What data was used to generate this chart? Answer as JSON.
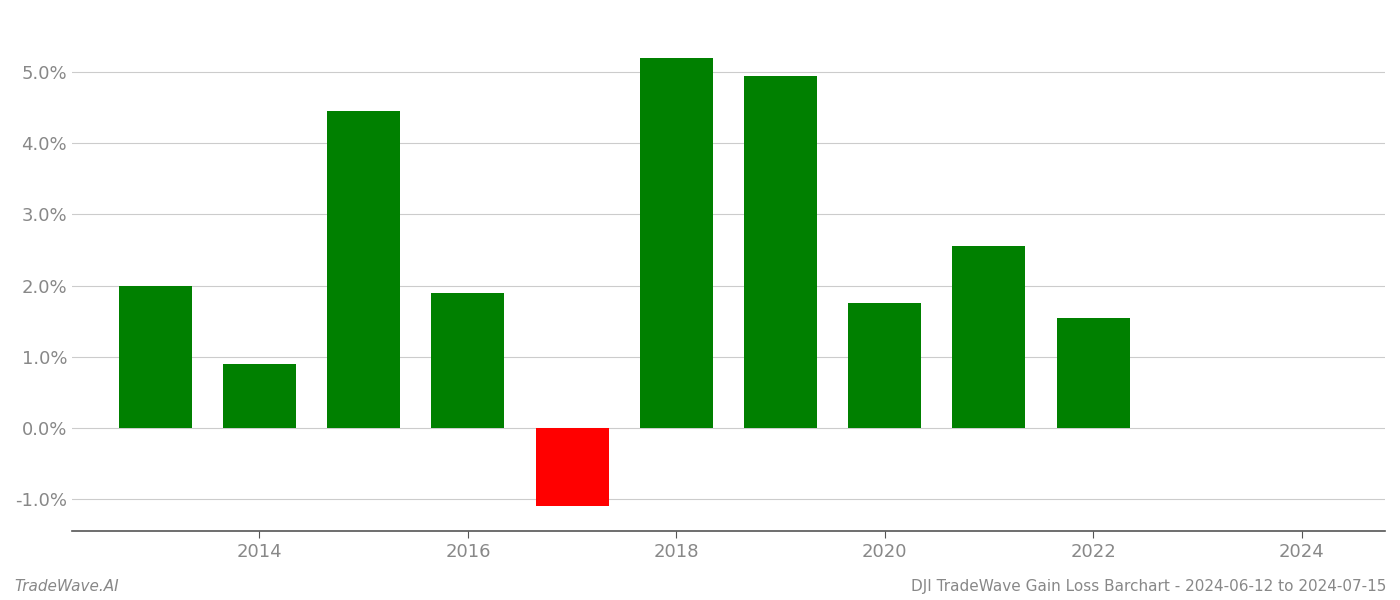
{
  "years": [
    2013,
    2014,
    2015,
    2016,
    2017,
    2018,
    2019,
    2020,
    2021,
    2022,
    2023
  ],
  "values": [
    0.02,
    0.009,
    0.0445,
    0.019,
    -0.011,
    0.052,
    0.0495,
    0.0175,
    0.0255,
    0.0155,
    0.0
  ],
  "colors": [
    "#008000",
    "#008000",
    "#008000",
    "#008000",
    "#ff0000",
    "#008000",
    "#008000",
    "#008000",
    "#008000",
    "#008000",
    "#008000"
  ],
  "bar_width": 0.7,
  "ylim": [
    -0.0145,
    0.058
  ],
  "yticks": [
    -0.01,
    0.0,
    0.01,
    0.02,
    0.03,
    0.04,
    0.05
  ],
  "xtick_positions": [
    2014,
    2016,
    2018,
    2020,
    2022,
    2024
  ],
  "xlim": [
    2012.2,
    2024.8
  ],
  "footer_left": "TradeWave.AI",
  "footer_right": "DJI TradeWave Gain Loss Barchart - 2024-06-12 to 2024-07-15",
  "background_color": "#ffffff",
  "grid_color": "#cccccc",
  "axis_color": "#555555",
  "tick_label_color": "#888888",
  "footer_color": "#888888",
  "tick_labelsize": 13,
  "footer_fontsize": 11
}
